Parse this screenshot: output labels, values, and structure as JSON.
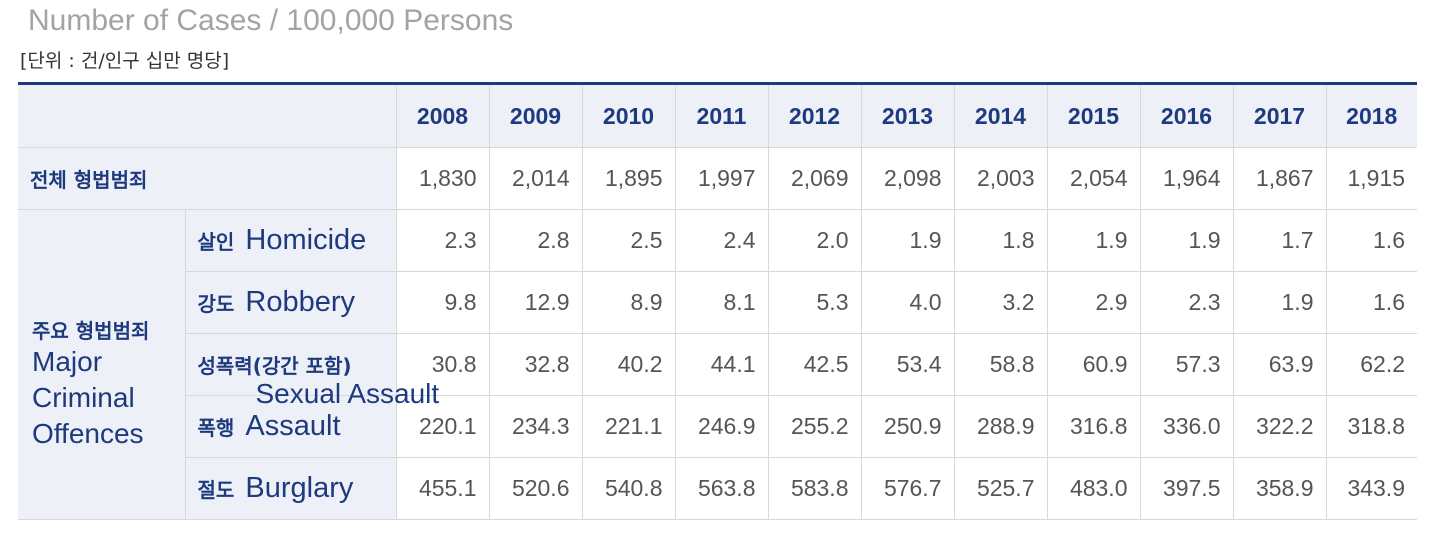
{
  "title_en": "Number of Cases / 100,000 Persons",
  "title_ko": "[단위 : 건/인구 십만 명당]",
  "years": [
    "2008",
    "2009",
    "2010",
    "2011",
    "2012",
    "2013",
    "2014",
    "2015",
    "2016",
    "2017",
    "2018"
  ],
  "total": {
    "label": "전체 형법범죄",
    "values": [
      "1,830",
      "2,014",
      "1,895",
      "1,997",
      "2,069",
      "2,098",
      "2,003",
      "2,054",
      "1,964",
      "1,867",
      "1,915"
    ]
  },
  "group": {
    "label_ko": "주요 형법범죄",
    "label_en_lines": [
      "Major",
      "Criminal",
      "Offences"
    ]
  },
  "rows": [
    {
      "ko": "살인",
      "en": "Homicide",
      "values": [
        "2.3",
        "2.8",
        "2.5",
        "2.4",
        "2.0",
        "1.9",
        "1.8",
        "1.9",
        "1.9",
        "1.7",
        "1.6"
      ]
    },
    {
      "ko": "강도",
      "en": "Robbery",
      "values": [
        "9.8",
        "12.9",
        "8.9",
        "8.1",
        "5.3",
        "4.0",
        "3.2",
        "2.9",
        "2.3",
        "1.9",
        "1.6"
      ]
    },
    {
      "ko": "성폭력(강간 포함)",
      "en": "Sexual Assault",
      "values": [
        "30.8",
        "32.8",
        "40.2",
        "44.1",
        "42.5",
        "53.4",
        "58.8",
        "60.9",
        "57.3",
        "63.9",
        "62.2"
      ]
    },
    {
      "ko": "폭행",
      "en": "Assault",
      "values": [
        "220.1",
        "234.3",
        "221.1",
        "246.9",
        "255.2",
        "250.9",
        "288.9",
        "316.8",
        "336.0",
        "322.2",
        "318.8"
      ]
    },
    {
      "ko": "절도",
      "en": "Burglary",
      "values": [
        "455.1",
        "520.6",
        "540.8",
        "563.8",
        "583.8",
        "576.7",
        "525.7",
        "483.0",
        "397.5",
        "358.9",
        "343.9"
      ]
    }
  ]
}
